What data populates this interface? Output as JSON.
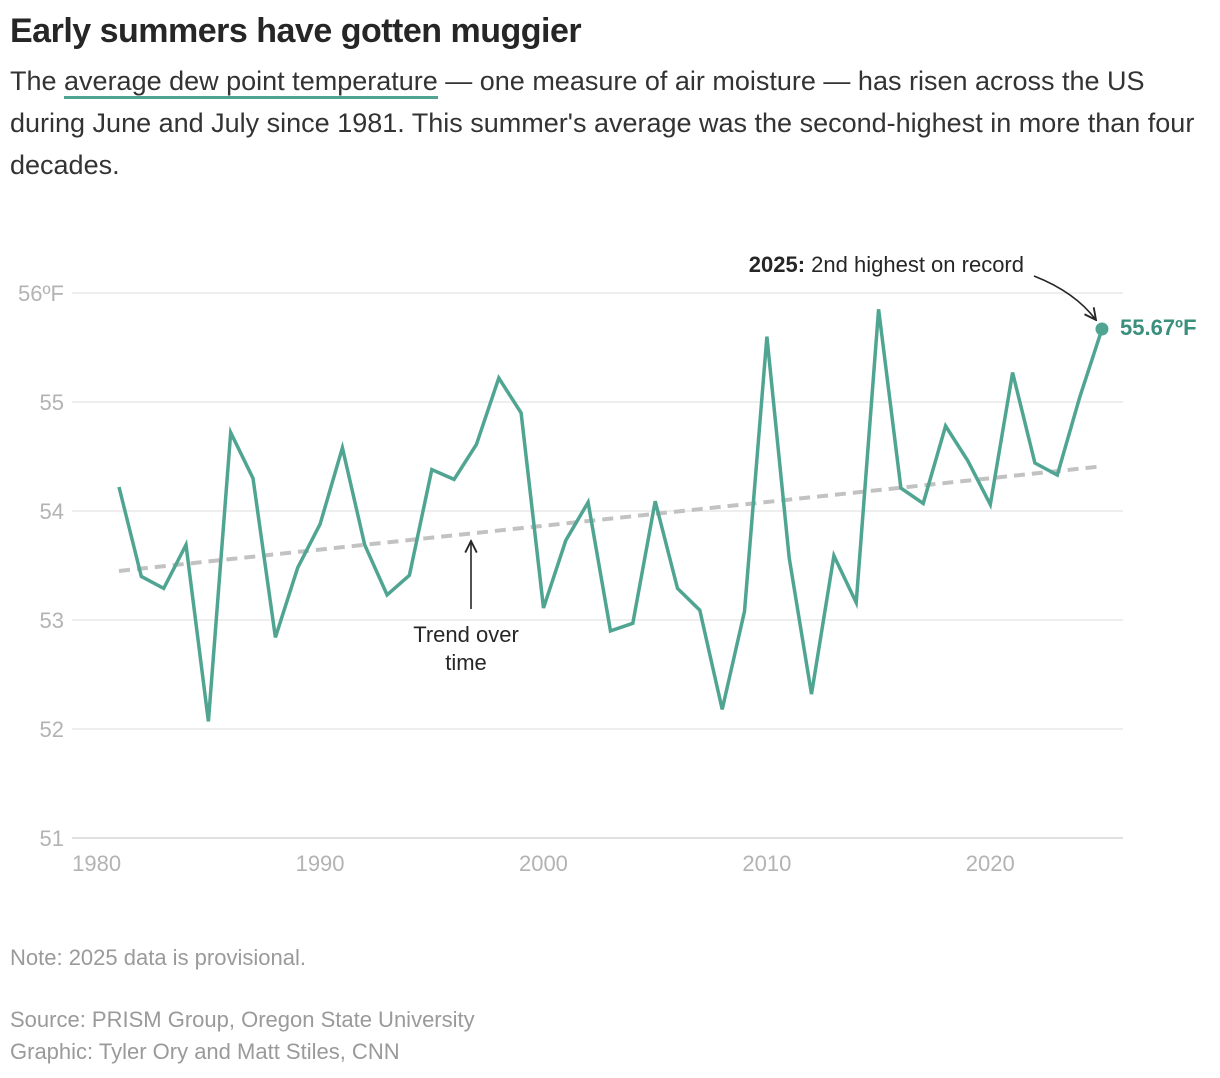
{
  "title": "Early summers have gotten muggier",
  "subtitle": {
    "before": "The ",
    "highlight": "average dew point temperature",
    "after": " — one measure of air moisture — has risen across the US during June and July since 1981. This summer's average was the second-highest in more than four decades."
  },
  "chart_data": {
    "type": "line",
    "title": "",
    "xlabel": "",
    "ylabel": "",
    "xlim": [
      1980,
      2025
    ],
    "ylim": [
      51,
      56
    ],
    "x_ticks": [
      "1980",
      "1990",
      "2000",
      "2010",
      "2020"
    ],
    "y_ticks": [
      "51",
      "52",
      "53",
      "54",
      "55",
      "56ºF"
    ],
    "grid": true,
    "colors": {
      "series": "#4fa592",
      "trend": "#c2c2c2",
      "label": "#3a8f7d"
    },
    "series": [
      {
        "x": [
          1981,
          1982,
          1983,
          1984,
          1985,
          1986,
          1987,
          1988,
          1989,
          1990,
          1991,
          1992,
          1993,
          1994,
          1995,
          1996,
          1997,
          1998,
          1999,
          2000,
          2001,
          2002,
          2003,
          2004,
          2005,
          2006,
          2007,
          2008,
          2009,
          2010,
          2011,
          2012,
          2013,
          2014,
          2015,
          2016,
          2017,
          2018,
          2019,
          2020,
          2021,
          2022,
          2023,
          2024,
          2025
        ],
        "values": [
          54.22,
          53.4,
          53.29,
          53.69,
          52.07,
          54.72,
          54.3,
          52.84,
          53.48,
          53.88,
          54.58,
          53.69,
          53.23,
          53.41,
          54.38,
          54.29,
          54.61,
          55.22,
          54.9,
          53.11,
          53.73,
          54.08,
          52.9,
          52.97,
          54.09,
          53.29,
          53.09,
          52.18,
          53.08,
          55.6,
          53.57,
          52.32,
          53.59,
          53.16,
          55.85,
          54.21,
          54.07,
          54.78,
          54.46,
          54.06,
          55.27,
          54.44,
          54.33,
          55.04,
          55.67
        ]
      }
    ],
    "trend": {
      "x": [
        1981,
        2025
      ],
      "values": [
        53.45,
        54.41
      ],
      "label": "Trend over time"
    },
    "annotations": {
      "highlight_bold": "2025:",
      "highlight_text": " 2nd highest on record",
      "last_value_label": "55.67ºF",
      "trend_line1": "Trend over",
      "trend_line2": "time"
    }
  },
  "footer": {
    "note": "Note: 2025 data is provisional.",
    "source": "Source: PRISM Group, Oregon State University",
    "credit": "Graphic: Tyler Ory and Matt Stiles, CNN"
  }
}
